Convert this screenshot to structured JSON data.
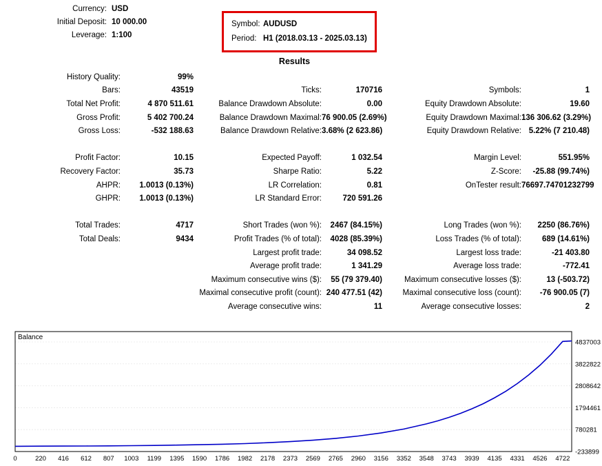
{
  "header": {
    "fields": [
      {
        "label": "Currency:",
        "value": "USD"
      },
      {
        "label": "Initial Deposit:",
        "value": "10 000.00"
      },
      {
        "label": "Leverage:",
        "value": "1:100"
      }
    ],
    "symbol_box": {
      "border_color": "#e00000",
      "fields": [
        {
          "label": "Symbol:",
          "value": "AUDUSD"
        },
        {
          "label": "Period:",
          "value": "H1 (2018.03.13 - 2025.03.13)"
        }
      ]
    }
  },
  "results_title": "Results",
  "stats": {
    "groups": [
      {
        "rows": [
          {
            "cells": [
              {
                "label": "History Quality:",
                "value": "99%"
              },
              null,
              null
            ]
          },
          {
            "cells": [
              {
                "label": "Bars:",
                "value": "43519"
              },
              {
                "label": "Ticks:",
                "value": "170716"
              },
              {
                "label": "Symbols:",
                "value": "1"
              }
            ]
          },
          {
            "cells": [
              {
                "label": "Total Net Profit:",
                "value": "4 870 511.61"
              },
              {
                "label": "Balance Drawdown Absolute:",
                "value": "0.00"
              },
              {
                "label": "Equity Drawdown Absolute:",
                "value": "19.60"
              }
            ]
          },
          {
            "cells": [
              {
                "label": "Gross Profit:",
                "value": "5 402 700.24"
              },
              {
                "label": "Balance Drawdown Maximal:",
                "value": "76 900.05 (2.69%)"
              },
              {
                "label": "Equity Drawdown Maximal:",
                "value": "136 306.62 (3.29%)"
              }
            ]
          },
          {
            "cells": [
              {
                "label": "Gross Loss:",
                "value": "-532 188.63"
              },
              {
                "label": "Balance Drawdown Relative:",
                "value": "3.68% (2 623.86)"
              },
              {
                "label": "Equity Drawdown Relative:",
                "value": "5.22% (7 210.48)"
              }
            ]
          }
        ]
      },
      {
        "rows": [
          {
            "cells": [
              {
                "label": "Profit Factor:",
                "value": "10.15"
              },
              {
                "label": "Expected Payoff:",
                "value": "1 032.54"
              },
              {
                "label": "Margin Level:",
                "value": "551.95%"
              }
            ]
          },
          {
            "cells": [
              {
                "label": "Recovery Factor:",
                "value": "35.73"
              },
              {
                "label": "Sharpe Ratio:",
                "value": "5.22"
              },
              {
                "label": "Z-Score:",
                "value": "-25.88 (99.74%)"
              }
            ]
          },
          {
            "cells": [
              {
                "label": "AHPR:",
                "value": "1.0013 (0.13%)"
              },
              {
                "label": "LR Correlation:",
                "value": "0.81"
              },
              {
                "label": "OnTester result:",
                "value": "76697.74701232799"
              }
            ]
          },
          {
            "cells": [
              {
                "label": "GHPR:",
                "value": "1.0013 (0.13%)"
              },
              {
                "label": "LR Standard Error:",
                "value": "720 591.26"
              },
              null
            ]
          }
        ]
      },
      {
        "rows": [
          {
            "cells": [
              {
                "label": "Total Trades:",
                "value": "4717"
              },
              {
                "label": "Short Trades (won %):",
                "value": "2467 (84.15%)"
              },
              {
                "label": "Long Trades (won %):",
                "value": "2250 (86.76%)"
              }
            ]
          },
          {
            "cells": [
              {
                "label": "Total Deals:",
                "value": "9434"
              },
              {
                "label": "Profit Trades (% of total):",
                "value": "4028 (85.39%)"
              },
              {
                "label": "Loss Trades (% of total):",
                "value": "689 (14.61%)"
              }
            ]
          },
          {
            "cells": [
              null,
              {
                "label": "Largest profit trade:",
                "value": "34 098.52"
              },
              {
                "label": "Largest loss trade:",
                "value": "-21 403.80"
              }
            ]
          },
          {
            "cells": [
              null,
              {
                "label": "Average profit trade:",
                "value": "1 341.29"
              },
              {
                "label": "Average loss trade:",
                "value": "-772.41"
              }
            ]
          },
          {
            "cells": [
              null,
              {
                "label": "Maximum consecutive wins ($):",
                "value": "55 (79 379.40)"
              },
              {
                "label": "Maximum consecutive losses ($):",
                "value": "13 (-503.72)"
              }
            ]
          },
          {
            "cells": [
              null,
              {
                "label": "Maximal consecutive profit (count):",
                "value": "240 477.51 (42)"
              },
              {
                "label": "Maximal consecutive loss (count):",
                "value": "-76 900.05 (7)"
              }
            ]
          },
          {
            "cells": [
              null,
              {
                "label": "Average consecutive wins:",
                "value": "11"
              },
              {
                "label": "Average consecutive losses:",
                "value": "2"
              }
            ]
          }
        ]
      }
    ]
  },
  "chart_data": {
    "type": "line",
    "title": "Balance",
    "legend_position": "top-left-inside",
    "grid": "horizontal-faint",
    "x_range": [
      0,
      4800
    ],
    "y_range": [
      -233899,
      5315000
    ],
    "x_ticks": [
      0,
      220,
      416,
      612,
      807,
      1003,
      1199,
      1395,
      1590,
      1786,
      1982,
      2178,
      2373,
      2569,
      2765,
      2960,
      3156,
      3352,
      3548,
      3743,
      3939,
      4135,
      4331,
      4526,
      4722
    ],
    "y_ticks": [
      4837003,
      3822822,
      2808642,
      1794461,
      780281,
      -233899
    ],
    "series": [
      {
        "name": "Balance",
        "color": "#0000c8",
        "points": [
          [
            0,
            10000
          ],
          [
            220,
            13340
          ],
          [
            416,
            17250
          ],
          [
            612,
            22290
          ],
          [
            807,
            28780
          ],
          [
            1003,
            37210
          ],
          [
            1199,
            48100
          ],
          [
            1395,
            62170
          ],
          [
            1590,
            80280
          ],
          [
            1786,
            103760
          ],
          [
            1982,
            134130
          ],
          [
            2178,
            173380
          ],
          [
            2373,
            223900
          ],
          [
            2569,
            289500
          ],
          [
            2765,
            374200
          ],
          [
            2960,
            483200
          ],
          [
            3156,
            624500
          ],
          [
            3352,
            807300
          ],
          [
            3548,
            1044000
          ],
          [
            3645,
            1185000
          ],
          [
            3743,
            1348000
          ],
          [
            3841,
            1532000
          ],
          [
            3939,
            1742000
          ],
          [
            4037,
            1980000
          ],
          [
            4135,
            2252000
          ],
          [
            4233,
            2561000
          ],
          [
            4331,
            2910000
          ],
          [
            4428,
            3306000
          ],
          [
            4526,
            3757000
          ],
          [
            4624,
            4273000
          ],
          [
            4722,
            4858000
          ],
          [
            4800,
            4880512
          ]
        ]
      }
    ]
  }
}
